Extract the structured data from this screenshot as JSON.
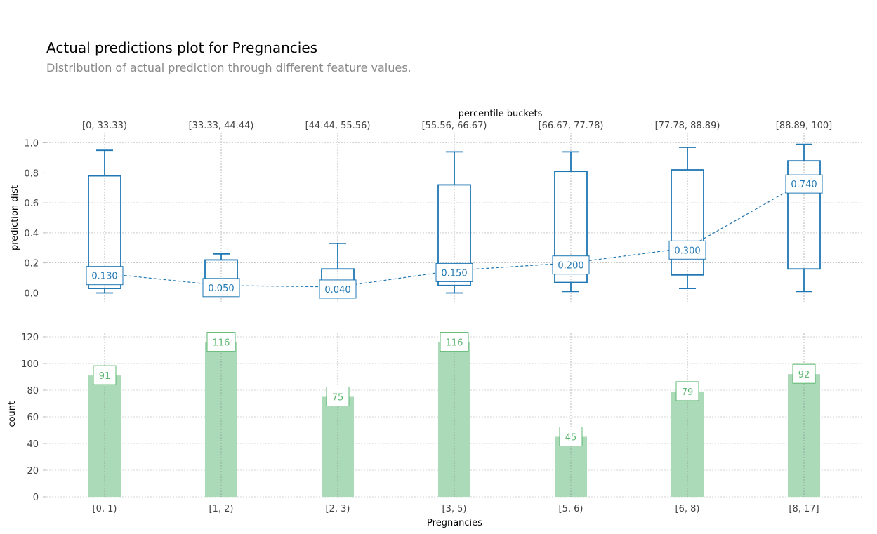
{
  "title": "Actual predictions plot for Pregnancies",
  "subtitle": "Distribution of actual prediction through different feature values.",
  "colors": {
    "box": "#1f77b4",
    "box_label": "#1f77b4",
    "bar_fill": "#abdab9",
    "bar_label": "#5cb870",
    "grid": "#a9a9a9",
    "axis_text": "#424242"
  },
  "chart_data": [
    {
      "type": "box",
      "name": "prediction-distribution",
      "ylabel": "prediction dist",
      "top_axis_title": "percentile buckets",
      "top_tick_labels": [
        "[0, 33.33)",
        "[33.33, 44.44)",
        "[44.44, 55.56)",
        "[55.56, 66.67)",
        "[66.67, 77.78)",
        "[77.78, 88.89)",
        "[88.89, 100]"
      ],
      "yticks": [
        0.0,
        0.2,
        0.4,
        0.6,
        0.8,
        1.0
      ],
      "ytick_labels": [
        "0.0",
        "0.2",
        "0.4",
        "0.6",
        "0.8",
        "1.0"
      ],
      "ylim": [
        -0.07,
        1.07
      ],
      "grid": true,
      "boxes": [
        {
          "whisker_low": 0.0,
          "q1": 0.03,
          "q3": 0.78,
          "whisker_high": 0.95,
          "median": 0.13
        },
        {
          "whisker_low": 0.05,
          "q1": 0.05,
          "q3": 0.22,
          "whisker_high": 0.26,
          "median": 0.05
        },
        {
          "whisker_low": 0.04,
          "q1": 0.04,
          "q3": 0.16,
          "whisker_high": 0.33,
          "median": 0.04
        },
        {
          "whisker_low": 0.0,
          "q1": 0.05,
          "q3": 0.72,
          "whisker_high": 0.94,
          "median": 0.15
        },
        {
          "whisker_low": 0.01,
          "q1": 0.07,
          "q3": 0.81,
          "whisker_high": 0.94,
          "median": 0.2
        },
        {
          "whisker_low": 0.03,
          "q1": 0.12,
          "q3": 0.82,
          "whisker_high": 0.97,
          "median": 0.3
        },
        {
          "whisker_low": 0.01,
          "q1": 0.16,
          "q3": 0.88,
          "whisker_high": 0.99,
          "median": 0.74
        }
      ],
      "median_labels": [
        "0.130",
        "0.050",
        "0.040",
        "0.150",
        "0.200",
        "0.300",
        "0.740"
      ]
    },
    {
      "type": "bar",
      "name": "count",
      "ylabel": "count",
      "xlabel": "Pregnancies",
      "categories": [
        "[0, 1)",
        "[1, 2)",
        "[2, 3)",
        "[3, 5)",
        "[5, 6)",
        "[6, 8)",
        "[8, 17]"
      ],
      "values": [
        91,
        116,
        75,
        116,
        45,
        79,
        92
      ],
      "value_labels": [
        "91",
        "116",
        "75",
        "116",
        "45",
        "79",
        "92"
      ],
      "yticks": [
        0,
        20,
        40,
        60,
        80,
        100,
        120
      ],
      "ytick_labels": [
        "0",
        "20",
        "40",
        "60",
        "80",
        "100",
        "120"
      ],
      "ylim": [
        0,
        122
      ],
      "grid": true
    }
  ]
}
